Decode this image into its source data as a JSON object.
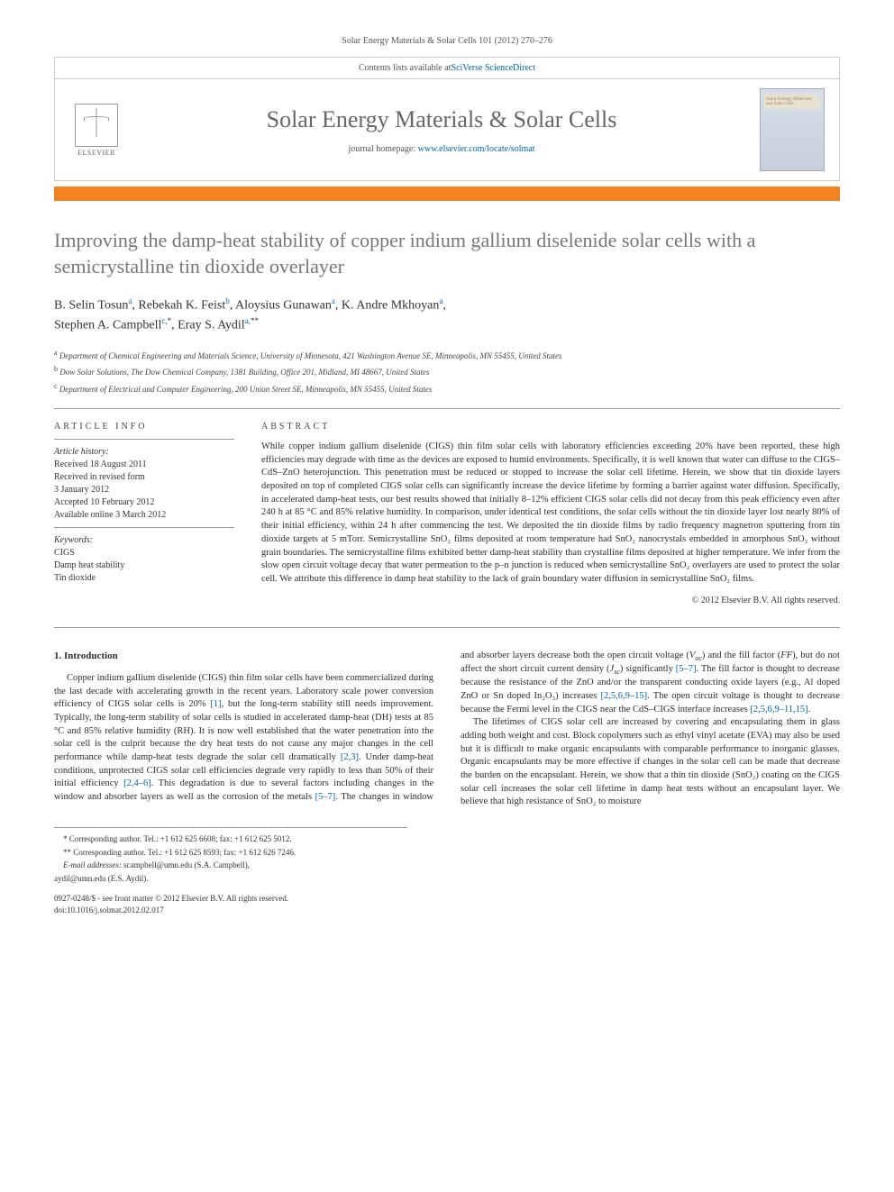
{
  "running_head": "Solar Energy Materials & Solar Cells 101 (2012) 270–276",
  "masthead": {
    "contents_prefix": "Contents lists available at ",
    "contents_link": "SciVerse ScienceDirect",
    "journal_title": "Solar Energy Materials & Solar Cells",
    "homepage_prefix": "journal homepage: ",
    "homepage_link": "www.elsevier.com/locate/solmat",
    "publisher": "ELSEVIER",
    "cover_label1": "Solar Energy Materials",
    "cover_label2": "and Solar Cells"
  },
  "title": "Improving the damp-heat stability of copper indium gallium diselenide solar cells with a semicrystalline tin dioxide overlayer",
  "authors_line1": "B. Selin Tosun",
  "authors_sup1": "a",
  "authors_sep": ", ",
  "author2": "Rebekah K. Feist",
  "author2_sup": "b",
  "author3": "Aloysius Gunawan",
  "author3_sup": "a",
  "author4": "K. Andre Mkhoyan",
  "author4_sup": "a",
  "author5": "Stephen A. Campbell",
  "author5_sup": "c,",
  "author5_mark": "*",
  "author6": "Eray S. Aydil",
  "author6_sup": "a,",
  "author6_mark": "**",
  "affiliations": {
    "a": "Department of Chemical Engineering and Materials Science, University of Minnesota, 421 Washington Avenue SE, Minneapolis, MN 55455, United States",
    "b": "Dow Solar Solutions, The Dow Chemical Company, 1381 Building, Office 201, Midland, MI 48667, United States",
    "c": "Department of Electrical and Computer Engineering, 200 Union Street SE, Minneapolis, MN 55455, United States"
  },
  "article_info": {
    "head": "ARTICLE INFO",
    "history_head": "Article history:",
    "received": "Received 18 August 2011",
    "revised": "Received in revised form",
    "revised_date": "3 January 2012",
    "accepted": "Accepted 10 February 2012",
    "online": "Available online 3 March 2012",
    "keywords_head": "Keywords:",
    "kw1": "CIGS",
    "kw2": "Damp heat stability",
    "kw3": "Tin dioxide"
  },
  "abstract": {
    "head": "ABSTRACT",
    "body": "While copper indium gallium diselenide (CIGS) thin film solar cells with laboratory efficiencies exceeding 20% have been reported, these high efficiencies may degrade with time as the devices are exposed to humid environments. Specifically, it is well known that water can diffuse to the CIGS–CdS–ZnO heterojunction. This penetration must be reduced or stopped to increase the solar cell lifetime. Herein, we show that tin dioxide layers deposited on top of completed CIGS solar cells can significantly increase the device lifetime by forming a barrier against water diffusion. Specifically, in accelerated damp-heat tests, our best results showed that initially 8–12% efficient CIGS solar cells did not decay from this peak efficiency even after 240 h at 85 °C and 85% relative humidity. In comparison, under identical test conditions, the solar cells without the tin dioxide layer lost nearly 80% of their initial efficiency, within 24 h after commencing the test. We deposited the tin dioxide films by radio frequency magnetron sputtering from tin dioxide targets at 5 mTorr. Semicrystalline SnO₂ films deposited at room temperature had SnO₂ nanocrystals embedded in amorphous SnO₂ without grain boundaries. The semicrystalline films exhibited better damp-heat stability than crystalline films deposited at higher temperature. We infer from the slow open circuit voltage decay that water permeation to the p–n junction is reduced when semicrystalline SnO₂ overlayers are used to protect the solar cell. We attribute this difference in damp heat stability to the lack of grain boundary water diffusion in semicrystalline SnO₂ films.",
    "copyright": "© 2012 Elsevier B.V. All rights reserved."
  },
  "section1": {
    "head": "1. Introduction",
    "p1a": "Copper indium gallium diselenide (CIGS) thin film solar cells have been commercialized during the last decade with accelerating growth in the recent years. Laboratory scale power conversion efficiency of CIGS solar cells is 20% ",
    "ref1": "[1]",
    "p1b": ", but the long-term stability still needs improvement. Typically, the long-term stability of solar cells is studied in accelerated damp-heat (DH) tests at 85 °C and 85% relative humidity (RH). It is now well established that the water penetration into the solar cell is the culprit because the dry heat tests do not cause any major changes in the cell performance while damp-heat tests degrade the solar cell dramatically ",
    "ref2": "[2,3]",
    "p1c": ". Under damp-heat conditions, unprotected CIGS solar cell efficiencies degrade very rapidly to less than 50% of their initial efficiency ",
    "ref3": "[2,4–6]",
    "p1d": ". This degradation is due to several factors including changes in the window and absorber layers as well as the corrosion of the metals ",
    "ref4": "[5–7]",
    "p1e": ". The changes in window and absorber layers decrease both the open circuit voltage (",
    "voc": "V",
    "voc_sub": "oc",
    "p1f": ") and the fill factor (",
    "ff": "FF",
    "p1g": "), but do not affect the short circuit current density (",
    "jsc": "J",
    "jsc_sub": "sc",
    "p1h": ") significantly ",
    "ref5": "[5–7]",
    "p1i": ". The fill factor is thought to decrease because the resistance of the ZnO and/or the transparent conducting oxide layers (e.g., Al doped ZnO or Sn doped In₂O₃) increases ",
    "ref6": "[2,5,6,9–15]",
    "p1j": ". The open circuit voltage is thought to decrease because the Fermi level in the CIGS near the CdS–CIGS interface increases ",
    "ref7": "[2,5,6,9–11,15]",
    "p1k": ".",
    "p2a": "The lifetimes of CIGS solar cell are increased by covering and encapsulating them in glass adding both weight and cost. Block copolymers such as ethyl vinyl acetate (EVA) may also be used but it is difficult to make organic encapsulants with comparable performance to inorganic glasses. Organic encapsulants may be more effective if changes in the solar cell can be made that decrease the burden on the encapsulant. Herein, we show that a thin tin dioxide (SnO₂) coating on the CIGS solar cell increases the solar cell lifetime in damp heat tests without an encapsulant layer. We believe that high resistance of SnO₂ to moisture"
  },
  "footnotes": {
    "corr1": "* Corresponding author. Tel.: +1 612 625 6608; fax: +1 612 625 5012.",
    "corr2": "** Corresponding author. Tel.: +1 612 625 8593; fax: +1 612 626 7246.",
    "email_head": "E-mail addresses:",
    "email1": " scampbell@umn.edu (S.A. Campbell),",
    "email2": "aydil@umn.edu (E.S. Aydil).",
    "doi1": "0927-0248/$ - see front matter © 2012 Elsevier B.V. All rights reserved.",
    "doi2": "doi:10.1016/j.solmat.2012.02.017"
  },
  "colors": {
    "orange_bar": "#f58220",
    "link": "#0066aa",
    "title_gray": "#777777",
    "text": "#2d2d2d"
  }
}
